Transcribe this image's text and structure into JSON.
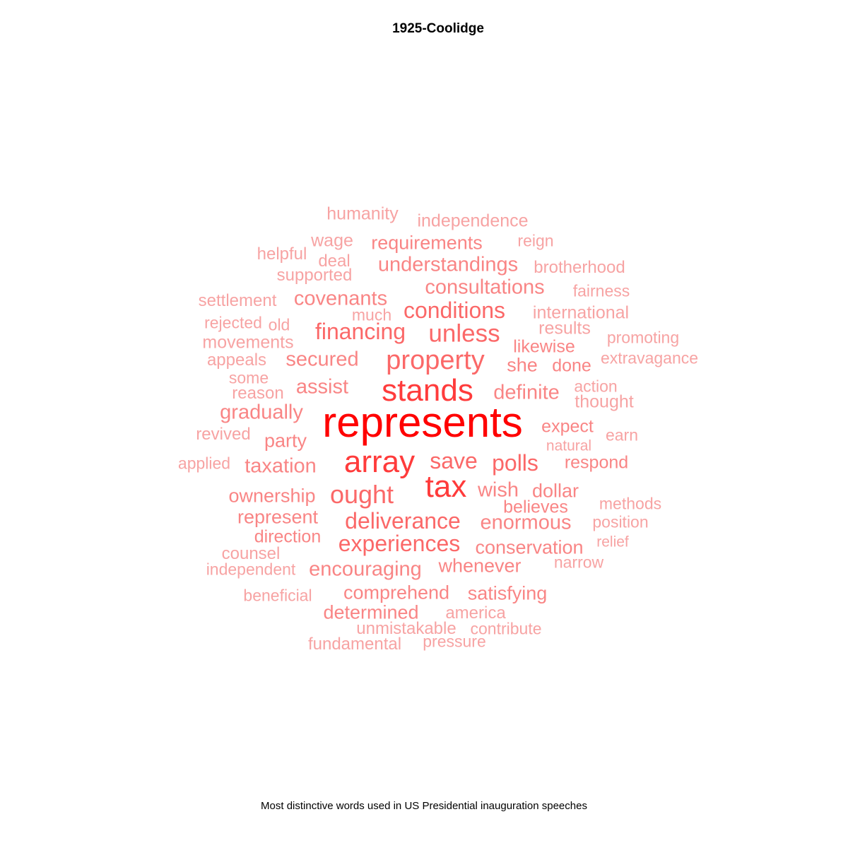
{
  "title": "1925-Coolidge",
  "caption": "Most distinctive words used in US Presidential inauguration speeches",
  "colors": {
    "level_5": "#ff0000",
    "level_4": "#ff3b3b",
    "level_3": "#fb6868",
    "level_2": "#f98585",
    "level_1": "#f7a3a3"
  },
  "words": [
    {
      "text": "represents",
      "level": 5
    },
    {
      "text": "stands",
      "level": 4
    },
    {
      "text": "tax",
      "level": 4
    },
    {
      "text": "array",
      "level": 4
    },
    {
      "text": "property",
      "level": 3
    },
    {
      "text": "ought",
      "level": 3
    },
    {
      "text": "unless",
      "level": 3
    },
    {
      "text": "deliverance",
      "level": 3
    },
    {
      "text": "experiences",
      "level": 3
    },
    {
      "text": "financing",
      "level": 3
    },
    {
      "text": "conditions",
      "level": 3
    },
    {
      "text": "save",
      "level": 3
    },
    {
      "text": "polls",
      "level": 3
    },
    {
      "text": "secured",
      "level": 2
    },
    {
      "text": "assist",
      "level": 2
    },
    {
      "text": "definite",
      "level": 2
    },
    {
      "text": "gradually",
      "level": 2
    },
    {
      "text": "covenants",
      "level": 2
    },
    {
      "text": "understandings",
      "level": 2
    },
    {
      "text": "consultations",
      "level": 2
    },
    {
      "text": "taxation",
      "level": 2
    },
    {
      "text": "wish",
      "level": 2
    },
    {
      "text": "enormous",
      "level": 2
    },
    {
      "text": "encouraging",
      "level": 2
    },
    {
      "text": "comprehend",
      "level": 2
    },
    {
      "text": "satisfying",
      "level": 2
    },
    {
      "text": "she",
      "level": 2
    },
    {
      "text": "party",
      "level": 2
    },
    {
      "text": "represent",
      "level": 2
    },
    {
      "text": "conservation",
      "level": 2
    },
    {
      "text": "whenever",
      "level": 2
    },
    {
      "text": "requirements",
      "level": 2
    },
    {
      "text": "dollar",
      "level": 2
    },
    {
      "text": "believes",
      "level": 2
    },
    {
      "text": "respond",
      "level": 2
    },
    {
      "text": "determined",
      "level": 2
    },
    {
      "text": "ownership",
      "level": 2
    },
    {
      "text": "direction",
      "level": 2
    },
    {
      "text": "likewise",
      "level": 2
    },
    {
      "text": "expect",
      "level": 2
    },
    {
      "text": "done",
      "level": 2
    },
    {
      "text": "independence",
      "level": 1
    },
    {
      "text": "humanity",
      "level": 1
    },
    {
      "text": "wage",
      "level": 1
    },
    {
      "text": "reign",
      "level": 1
    },
    {
      "text": "helpful",
      "level": 1
    },
    {
      "text": "deal",
      "level": 1
    },
    {
      "text": "supported",
      "level": 1
    },
    {
      "text": "brotherhood",
      "level": 1
    },
    {
      "text": "fairness",
      "level": 1
    },
    {
      "text": "settlement",
      "level": 1
    },
    {
      "text": "much",
      "level": 1
    },
    {
      "text": "international",
      "level": 1
    },
    {
      "text": "rejected",
      "level": 1
    },
    {
      "text": "old",
      "level": 1
    },
    {
      "text": "results",
      "level": 1
    },
    {
      "text": "promoting",
      "level": 1
    },
    {
      "text": "movements",
      "level": 1
    },
    {
      "text": "appeals",
      "level": 1
    },
    {
      "text": "extravagance",
      "level": 1
    },
    {
      "text": "some",
      "level": 1
    },
    {
      "text": "action",
      "level": 1
    },
    {
      "text": "reason",
      "level": 1
    },
    {
      "text": "thought",
      "level": 1
    },
    {
      "text": "revived",
      "level": 1
    },
    {
      "text": "earn",
      "level": 1
    },
    {
      "text": "natural",
      "level": 1
    },
    {
      "text": "applied",
      "level": 1
    },
    {
      "text": "methods",
      "level": 1
    },
    {
      "text": "position",
      "level": 1
    },
    {
      "text": "counsel",
      "level": 1
    },
    {
      "text": "relief",
      "level": 1
    },
    {
      "text": "independent",
      "level": 1
    },
    {
      "text": "narrow",
      "level": 1
    },
    {
      "text": "beneficial",
      "level": 1
    },
    {
      "text": "america",
      "level": 1
    },
    {
      "text": "unmistakable",
      "level": 1
    },
    {
      "text": "contribute",
      "level": 1
    },
    {
      "text": "fundamental",
      "level": 1
    },
    {
      "text": "pressure",
      "level": 1
    }
  ]
}
